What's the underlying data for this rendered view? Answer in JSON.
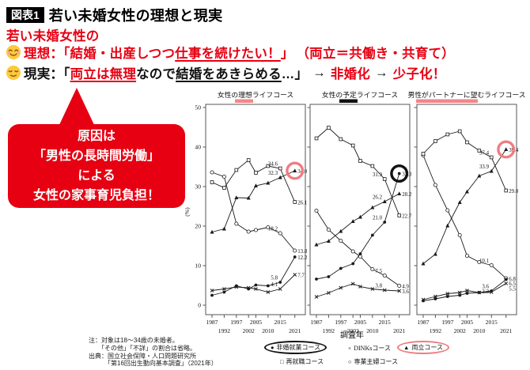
{
  "header": {
    "badge": "図表1",
    "title": "若い未婚女性の理想と現実"
  },
  "intro": {
    "lead": "若い未婚女性の",
    "ideal": {
      "prefix": "理想：「結婚・出産しつつ",
      "underline": "仕事を続けたい！",
      "close": "」",
      "paren": "（両立＝共働き・共育て）"
    },
    "reality": {
      "prefix": "現実：「",
      "red_underline": "両立は無理",
      "mid": "なので",
      "underline": "結婚をあきらめる",
      "suffix": "…」",
      "arrow": "→",
      "outcome1": "非婚化",
      "outcome2": "少子化！"
    }
  },
  "icons": {
    "ideal_face": "smiling-blush-face-icon",
    "reality_face": "relieved-face-icon"
  },
  "bubble": {
    "lines": [
      "原因は",
      "「男性の長時間労働」",
      "による",
      "女性の家事育児負担！"
    ]
  },
  "colors": {
    "red": "#e60012",
    "pink_ring": "#ef7d82",
    "black": "#111111"
  },
  "charts_axis": {
    "years": [
      "1987",
      "1992",
      "1997",
      "2002",
      "2005",
      "2010",
      "2015",
      "2021"
    ],
    "yticks": [
      0,
      10,
      20,
      30,
      40,
      50
    ],
    "ylim": [
      0,
      50
    ],
    "xlabel": "調査年",
    "ylabel": "(%)"
  },
  "chart_data": [
    {
      "type": "line",
      "title": "女性の理想ライフコース",
      "title_highlight": "#f4858a",
      "series": [
        {
          "name": "専業主婦コース",
          "marker": "circle-open",
          "values": [
            33.6,
            32.5,
            20.6,
            18.6,
            19.0,
            19.7,
            18.2,
            13.8
          ]
        },
        {
          "name": "再就職コース",
          "marker": "square-open",
          "values": [
            31.1,
            29.7,
            34.2,
            36.7,
            33.5,
            35.2,
            34.6,
            26.1
          ]
        },
        {
          "name": "両立コース",
          "marker": "triangle-filled",
          "values": [
            18.5,
            19.3,
            27.2,
            27.1,
            30.2,
            30.9,
            32.3,
            34.0
          ]
        },
        {
          "name": "DINKsコース",
          "marker": "cross",
          "values": [
            3.7,
            4.1,
            4.6,
            4.4,
            4.1,
            3.3,
            4.1,
            7.7
          ]
        },
        {
          "name": "非婚就業コース",
          "marker": "dot-filled",
          "values": [
            2.5,
            3.3,
            4.9,
            4.1,
            5.1,
            4.9,
            5.8,
            12.2
          ]
        }
      ],
      "highlight": {
        "series": "両立コース",
        "year": 2021,
        "ring_color": "#ef7d82"
      }
    },
    {
      "type": "line",
      "title": "女性の予定ライフコース",
      "title_highlight": "#111111",
      "series": [
        {
          "name": "専業主婦コース",
          "marker": "circle-open",
          "values": [
            23.9,
            19.1,
            16.3,
            13.6,
            12.3,
            9.1,
            7.5,
            4.9
          ]
        },
        {
          "name": "再就職コース",
          "marker": "square-open",
          "values": [
            42.2,
            44.9,
            42.0,
            40.4,
            36.5,
            35.2,
            31.9,
            22.7
          ]
        },
        {
          "name": "両立コース",
          "marker": "triangle-filled",
          "values": [
            15.3,
            16.2,
            18.7,
            21.2,
            22.3,
            24.7,
            26.2,
            28.2
          ]
        },
        {
          "name": "DINKsコース",
          "marker": "cross",
          "values": [
            2.1,
            3.1,
            4.4,
            5.4,
            4.7,
            4.1,
            3.8,
            3.6
          ]
        },
        {
          "name": "非婚就業コース",
          "marker": "dot-filled",
          "values": [
            6.6,
            7.2,
            9.3,
            10.5,
            13.0,
            17.7,
            21.0,
            33.3
          ]
        }
      ],
      "highlight": {
        "series": "非婚就業コース",
        "year": 2021,
        "ring_color": "#111111"
      }
    },
    {
      "type": "line",
      "title": "男性がパートナーに望むライフコース",
      "title_highlight": "#f4858a",
      "series": [
        {
          "name": "専業主婦コース",
          "marker": "circle-open",
          "values": [
            37.9,
            30.4,
            24.0,
            17.7,
            12.5,
            10.9,
            10.1,
            6.8
          ]
        },
        {
          "name": "再就職コース",
          "marker": "square-open",
          "values": [
            38.3,
            41.5,
            43.2,
            44.0,
            41.2,
            39.1,
            37.4,
            29.0
          ]
        },
        {
          "name": "両立コース",
          "marker": "triangle-filled",
          "values": [
            10.5,
            12.9,
            20.1,
            26.0,
            28.7,
            32.7,
            33.9,
            39.4
          ]
        },
        {
          "name": "DINKsコース",
          "marker": "cross",
          "values": [
            1.4,
            2.2,
            2.9,
            3.2,
            3.7,
            3.2,
            3.3,
            5.5
          ]
        },
        {
          "name": "非婚就業コース",
          "marker": "dot-filled",
          "values": [
            1.1,
            1.6,
            2.2,
            2.5,
            3.0,
            3.2,
            3.6,
            6.5
          ]
        }
      ],
      "highlight": {
        "series": "両立コース",
        "year": 2021,
        "ring_color": "#ef7d82"
      }
    }
  ],
  "legend": {
    "items": [
      {
        "label": "非婚就業コース",
        "marker": "dot-filled",
        "glyph": "●",
        "ring": "black"
      },
      {
        "label": "DINKsコース",
        "marker": "cross",
        "glyph": "×",
        "ring": null
      },
      {
        "label": "両立コース",
        "marker": "triangle-filled",
        "glyph": "▲",
        "ring": "pink"
      },
      {
        "label": "再就職コース",
        "marker": "square-open",
        "glyph": "□",
        "ring": null
      },
      {
        "label": "専業主婦コース",
        "marker": "circle-open",
        "glyph": "○",
        "ring": null
      }
    ]
  },
  "notes": [
    "注：対象は18～34歳の未婚者。",
    "「その他」「不詳」の割合は省略。",
    "出典：国立社会保障・人口問題研究所",
    "「第16回出生動向基本調査」（2021年）"
  ]
}
